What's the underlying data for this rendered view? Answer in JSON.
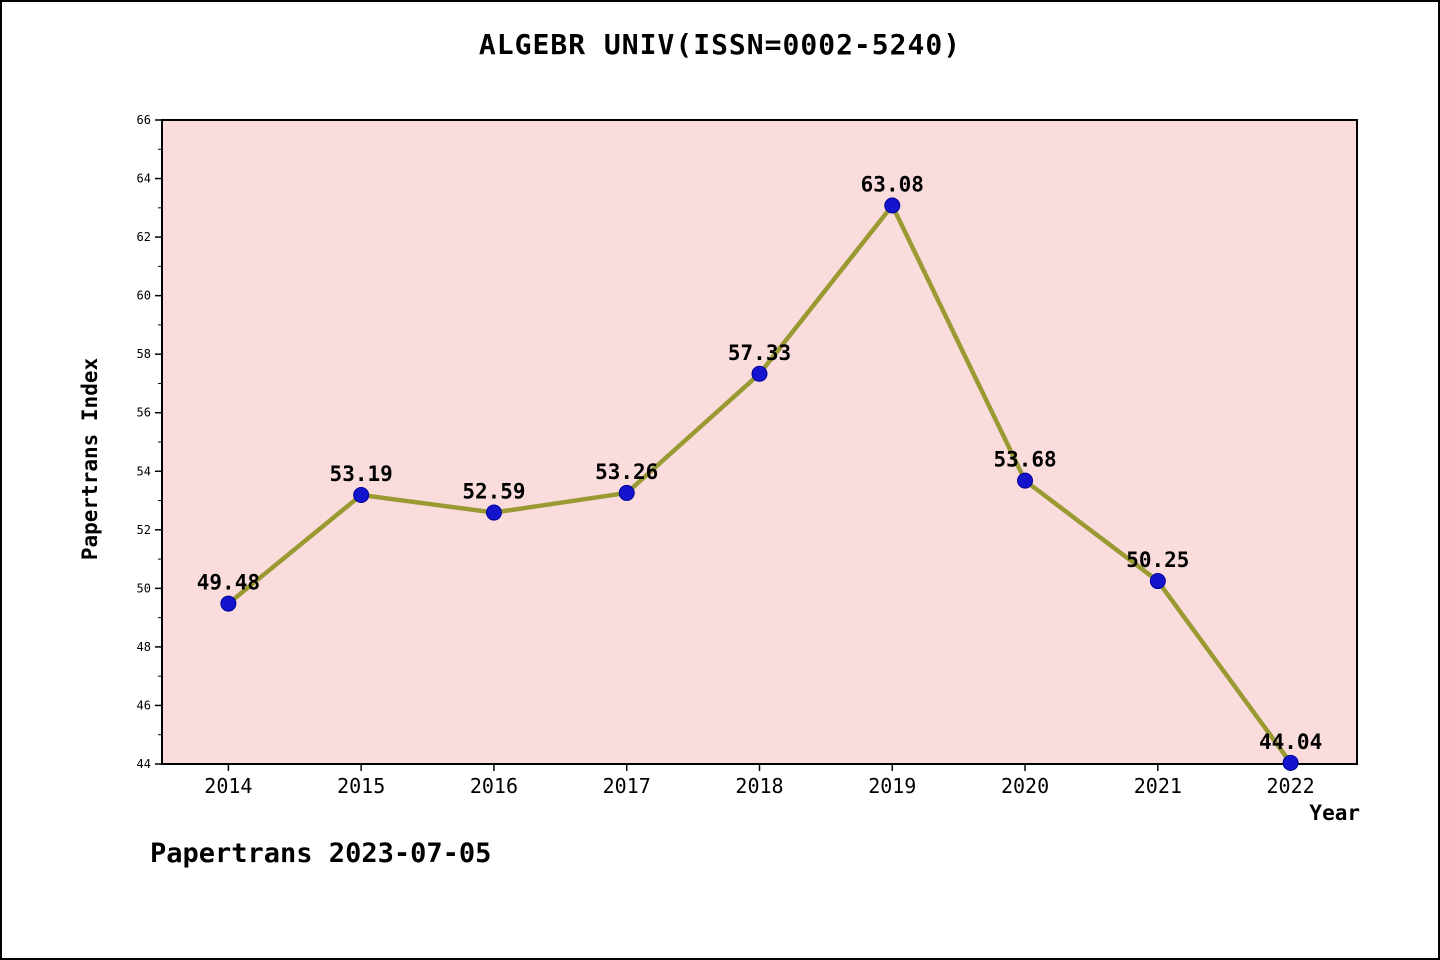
{
  "page": {
    "footer": "Papertrans 2023-07-05"
  },
  "chart_data": {
    "type": "line",
    "title": "ALGEBR UNIV(ISSN=0002-5240)",
    "xlabel": "Year",
    "ylabel": "Papertrans Index",
    "categories": [
      "2014",
      "2015",
      "2016",
      "2017",
      "2018",
      "2019",
      "2020",
      "2021",
      "2022"
    ],
    "values": [
      49.48,
      53.19,
      52.59,
      53.26,
      57.33,
      63.08,
      53.68,
      50.25,
      44.04
    ],
    "ylim": [
      44,
      66
    ],
    "ytick_step": 2,
    "grid": false,
    "legend": "none",
    "colors": {
      "line": "#9a9a33",
      "marker": "#1414cc",
      "marker_edge": "#00009a",
      "plot_bg": "#fbdcdc",
      "axis": "#000000"
    }
  }
}
